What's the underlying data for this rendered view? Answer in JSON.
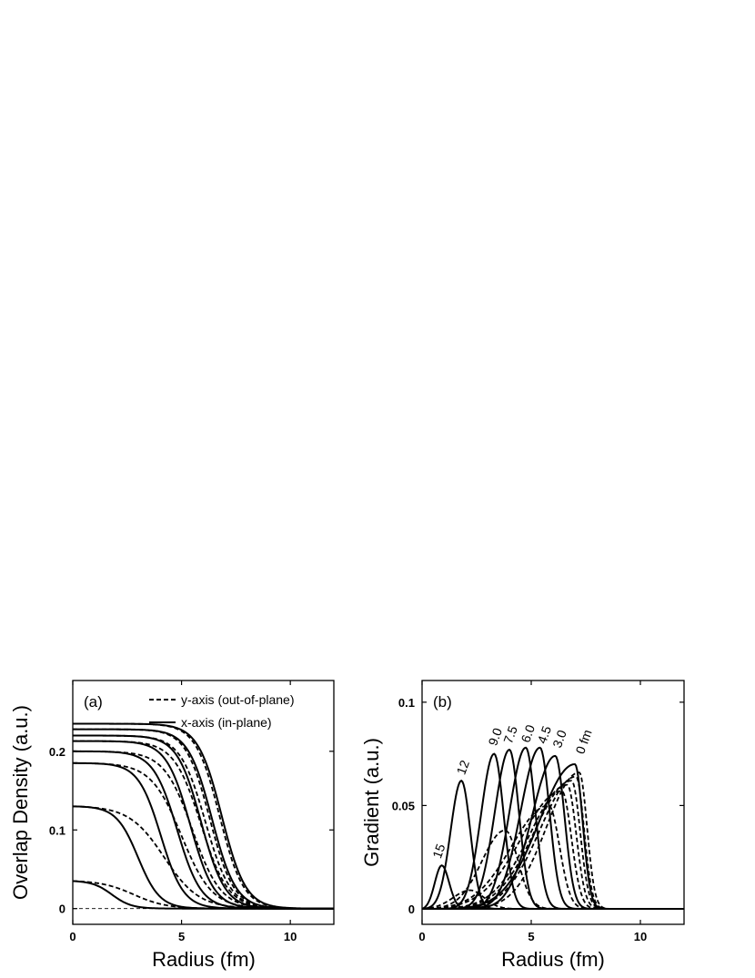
{
  "chart_data": [
    {
      "type": "line",
      "panel_label": "(a)",
      "xlabel": "Radius (fm)",
      "ylabel": "Overlap Density (a.u.)",
      "xlim": [
        0,
        12
      ],
      "ylim": [
        -0.02,
        0.29
      ],
      "xticks": [
        0,
        5,
        10
      ],
      "xtick_labels": [
        "0",
        "5",
        "10"
      ],
      "yticks": [
        0,
        0.1,
        0.2
      ],
      "ytick_labels": [
        "0",
        "0.1",
        "0.2"
      ],
      "legend": {
        "placement": "top-right",
        "entries": [
          {
            "label": "y-axis (out-of-plane)",
            "style": "dashed"
          },
          {
            "label": "x-axis (in-plane)",
            "style": "solid"
          }
        ]
      },
      "baseline": {
        "y": 0,
        "style": "dashed"
      },
      "series": [
        {
          "style": "solid",
          "peak": 0.235,
          "radius": 6.85,
          "diffuseness": 0.55
        },
        {
          "style": "dashed",
          "peak": 0.235,
          "radius": 6.75,
          "diffuseness": 0.55
        },
        {
          "style": "solid",
          "peak": 0.228,
          "radius": 6.4,
          "diffuseness": 0.55
        },
        {
          "style": "dashed",
          "peak": 0.228,
          "radius": 6.3,
          "diffuseness": 0.55
        },
        {
          "style": "solid",
          "peak": 0.22,
          "radius": 5.9,
          "diffuseness": 0.55
        },
        {
          "style": "dashed",
          "peak": 0.22,
          "radius": 6.1,
          "diffuseness": 0.58
        },
        {
          "style": "solid",
          "peak": 0.213,
          "radius": 5.4,
          "diffuseness": 0.55
        },
        {
          "style": "dashed",
          "peak": 0.213,
          "radius": 5.9,
          "diffuseness": 0.62
        },
        {
          "style": "solid",
          "peak": 0.2,
          "radius": 4.8,
          "diffuseness": 0.55
        },
        {
          "style": "dashed",
          "peak": 0.2,
          "radius": 5.5,
          "diffuseness": 0.65
        },
        {
          "style": "solid",
          "peak": 0.185,
          "radius": 4.05,
          "diffuseness": 0.52
        },
        {
          "style": "dashed",
          "peak": 0.185,
          "radius": 5.0,
          "diffuseness": 0.7
        },
        {
          "style": "solid",
          "peak": 0.13,
          "radius": 3.0,
          "diffuseness": 0.5
        },
        {
          "style": "dashed",
          "peak": 0.13,
          "radius": 4.2,
          "diffuseness": 0.8
        },
        {
          "style": "solid",
          "peak": 0.035,
          "radius": 1.8,
          "diffuseness": 0.45
        },
        {
          "style": "dashed",
          "peak": 0.035,
          "radius": 2.8,
          "diffuseness": 0.75
        }
      ]
    },
    {
      "type": "line",
      "panel_label": "(b)",
      "xlabel": "Radius (fm)",
      "ylabel": "Gradient (a.u.)",
      "xlim": [
        0,
        12
      ],
      "ylim": [
        -0.0075,
        0.1105
      ],
      "xticks": [
        0,
        5,
        10
      ],
      "xtick_labels": [
        "0",
        "5",
        "10"
      ],
      "yticks": [
        0,
        0.05,
        0.1
      ],
      "ytick_labels": [
        "0",
        "0.05",
        "0.1"
      ],
      "baseline": {
        "y": 0,
        "style": "dashed"
      },
      "curve_labels": [
        {
          "text": "15",
          "x": 0.85,
          "y": 0.024
        },
        {
          "text": "12",
          "x": 1.95,
          "y": 0.0645
        },
        {
          "text": "9.0",
          "x": 3.4,
          "y": 0.0785
        },
        {
          "text": "7.5",
          "x": 4.1,
          "y": 0.0795
        },
        {
          "text": "6.0",
          "x": 4.9,
          "y": 0.08
        },
        {
          "text": "4.5",
          "x": 5.65,
          "y": 0.0795
        },
        {
          "text": "3.0",
          "x": 6.35,
          "y": 0.0775
        },
        {
          "text": "0 fm",
          "x": 7.4,
          "y": 0.0745
        }
      ],
      "series": [
        {
          "style": "solid",
          "peak_x": 7.0,
          "peak_y": 0.07,
          "width_left": 2.3,
          "width_right": 0.5
        },
        {
          "style": "dashed",
          "peak_x": 7.2,
          "peak_y": 0.066,
          "width_left": 2.1,
          "width_right": 0.5
        },
        {
          "style": "dashed",
          "peak_x": 7.05,
          "peak_y": 0.064,
          "width_left": 2.3,
          "width_right": 0.52
        },
        {
          "style": "solid",
          "peak_x": 6.1,
          "peak_y": 0.074,
          "width_left": 1.5,
          "width_right": 0.6
        },
        {
          "style": "dashed",
          "peak_x": 6.85,
          "peak_y": 0.062,
          "width_left": 2.4,
          "width_right": 0.55
        },
        {
          "style": "solid",
          "peak_x": 5.4,
          "peak_y": 0.078,
          "width_left": 1.25,
          "width_right": 0.62
        },
        {
          "style": "dashed",
          "peak_x": 6.65,
          "peak_y": 0.06,
          "width_left": 2.4,
          "width_right": 0.58
        },
        {
          "style": "solid",
          "peak_x": 4.75,
          "peak_y": 0.078,
          "width_left": 1.05,
          "width_right": 0.62
        },
        {
          "style": "dashed",
          "peak_x": 6.4,
          "peak_y": 0.057,
          "width_left": 2.6,
          "width_right": 0.62
        },
        {
          "style": "solid",
          "peak_x": 4.0,
          "peak_y": 0.077,
          "width_left": 0.95,
          "width_right": 0.62
        },
        {
          "style": "dashed",
          "peak_x": 5.8,
          "peak_y": 0.05,
          "width_left": 2.4,
          "width_right": 0.7
        },
        {
          "style": "solid",
          "peak_x": 3.3,
          "peak_y": 0.075,
          "width_left": 0.85,
          "width_right": 0.62
        },
        {
          "style": "dashed",
          "peak_x": 3.8,
          "peak_y": 0.038,
          "width_left": 1.5,
          "width_right": 0.85
        },
        {
          "style": "solid",
          "peak_x": 1.8,
          "peak_y": 0.062,
          "width_left": 0.7,
          "width_right": 0.58
        },
        {
          "style": "dashed",
          "peak_x": 2.2,
          "peak_y": 0.009,
          "width_left": 1.1,
          "width_right": 0.9
        },
        {
          "style": "solid",
          "peak_x": 0.9,
          "peak_y": 0.021,
          "width_left": 0.45,
          "width_right": 0.48
        }
      ]
    }
  ]
}
